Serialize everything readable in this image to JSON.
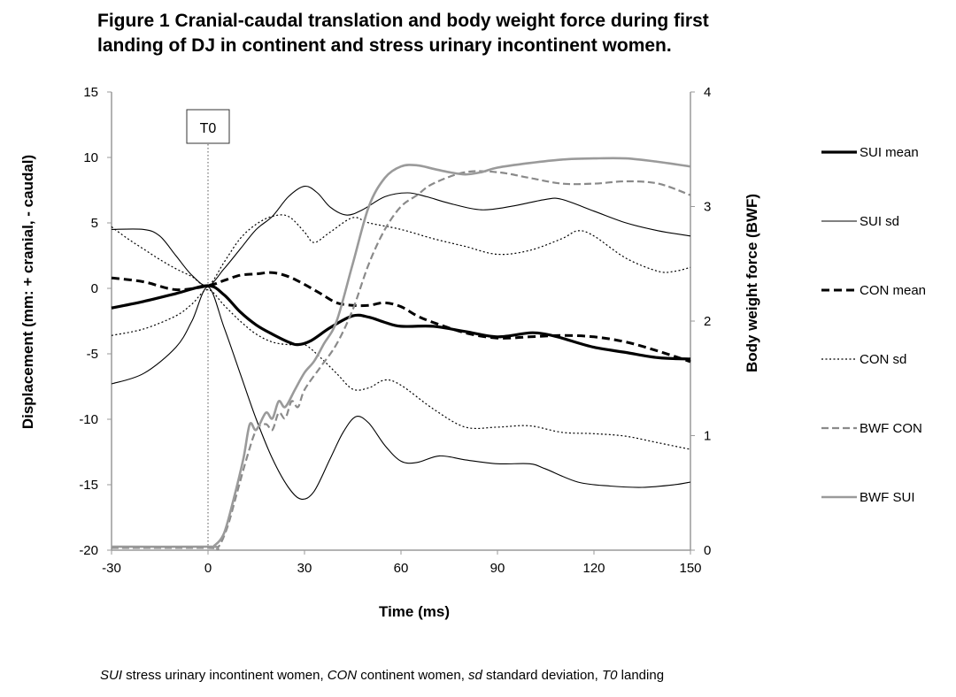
{
  "figure": {
    "title_line1": "Figure 1 Cranial-caudal translation and body weight force during first",
    "title_line2": "landing of DJ in continent and stress urinary incontinent women.",
    "caption": {
      "sui_abbr": "SUI",
      "sui_text": " stress urinary incontinent women, ",
      "con_abbr": "CON",
      "con_text": " continent women, ",
      "sd_abbr": "sd",
      "sd_text": " standard deviation, ",
      "t0_abbr": "T0",
      "t0_text": " landing"
    }
  },
  "chart_data": {
    "type": "line",
    "title": "",
    "xlabel": "Time (ms)",
    "ylabel": "Displacement (mm: + cranial, - caudal)",
    "y2label": "Body weight force (BWF)",
    "xlim": [
      -30,
      150
    ],
    "ylim": [
      -20,
      15
    ],
    "y2lim": [
      0,
      4
    ],
    "xticks": [
      -30,
      0,
      30,
      60,
      90,
      120,
      150
    ],
    "yticks": [
      15,
      10,
      5,
      0,
      -5,
      -10,
      -15,
      -20
    ],
    "y2ticks": [
      4,
      3,
      2,
      1,
      0
    ],
    "grid": false,
    "legend_position": "right",
    "annotation": {
      "text": "T0",
      "x": 0
    },
    "series": [
      {
        "name": "SUI mean",
        "axis": "left",
        "color": "#000000",
        "style": "solid-thick",
        "points": [
          [
            -30,
            -1.5
          ],
          [
            -20,
            -1.0
          ],
          [
            -10,
            -0.4
          ],
          [
            0,
            0.2
          ],
          [
            5,
            -0.5
          ],
          [
            10,
            -1.8
          ],
          [
            15,
            -2.8
          ],
          [
            20,
            -3.5
          ],
          [
            25,
            -4.1
          ],
          [
            28,
            -4.3
          ],
          [
            32,
            -4.0
          ],
          [
            38,
            -3.0
          ],
          [
            45,
            -2.1
          ],
          [
            50,
            -2.2
          ],
          [
            55,
            -2.6
          ],
          [
            60,
            -2.9
          ],
          [
            70,
            -2.9
          ],
          [
            80,
            -3.3
          ],
          [
            90,
            -3.7
          ],
          [
            100,
            -3.4
          ],
          [
            105,
            -3.5
          ],
          [
            110,
            -3.8
          ],
          [
            120,
            -4.5
          ],
          [
            130,
            -4.9
          ],
          [
            140,
            -5.3
          ],
          [
            150,
            -5.4
          ]
        ]
      },
      {
        "name": "SUI sd",
        "axis": "left",
        "color": "#000000",
        "style": "solid-thin",
        "points": [
          [
            -30,
            4.5
          ],
          [
            -20,
            4.5
          ],
          [
            -15,
            4.0
          ],
          [
            -10,
            2.5
          ],
          [
            -5,
            1.0
          ],
          [
            0,
            0.2
          ],
          [
            5,
            1.5
          ],
          [
            10,
            3.0
          ],
          [
            15,
            4.5
          ],
          [
            20,
            5.5
          ],
          [
            25,
            7.0
          ],
          [
            30,
            7.8
          ],
          [
            34,
            7.3
          ],
          [
            38,
            6.2
          ],
          [
            43,
            5.6
          ],
          [
            48,
            6.0
          ],
          [
            55,
            7.0
          ],
          [
            62,
            7.3
          ],
          [
            68,
            7.0
          ],
          [
            75,
            6.5
          ],
          [
            85,
            6.0
          ],
          [
            95,
            6.3
          ],
          [
            105,
            6.8
          ],
          [
            110,
            6.8
          ],
          [
            120,
            5.9
          ],
          [
            130,
            5.0
          ],
          [
            140,
            4.4
          ],
          [
            150,
            4.0
          ]
        ]
      },
      {
        "name": "SUI sd",
        "axis": "left",
        "color": "#000000",
        "style": "solid-thin",
        "points": [
          [
            -30,
            -7.3
          ],
          [
            -20,
            -6.5
          ],
          [
            -10,
            -4.5
          ],
          [
            -5,
            -2.5
          ],
          [
            0,
            0.1
          ],
          [
            5,
            -3.0
          ],
          [
            10,
            -6.5
          ],
          [
            15,
            -10.0
          ],
          [
            20,
            -13.0
          ],
          [
            25,
            -15.2
          ],
          [
            29,
            -16.1
          ],
          [
            33,
            -15.5
          ],
          [
            38,
            -13.0
          ],
          [
            42,
            -11.0
          ],
          [
            46,
            -9.8
          ],
          [
            50,
            -10.3
          ],
          [
            55,
            -12.0
          ],
          [
            60,
            -13.2
          ],
          [
            65,
            -13.3
          ],
          [
            72,
            -12.8
          ],
          [
            80,
            -13.1
          ],
          [
            90,
            -13.4
          ],
          [
            100,
            -13.4
          ],
          [
            105,
            -13.8
          ],
          [
            115,
            -14.8
          ],
          [
            125,
            -15.1
          ],
          [
            135,
            -15.2
          ],
          [
            145,
            -15.0
          ],
          [
            150,
            -14.8
          ]
        ]
      },
      {
        "name": "CON mean",
        "axis": "left",
        "color": "#000000",
        "style": "dashed-thick",
        "points": [
          [
            -30,
            0.8
          ],
          [
            -20,
            0.5
          ],
          [
            -10,
            -0.1
          ],
          [
            0,
            0.2
          ],
          [
            5,
            0.6
          ],
          [
            10,
            1.0
          ],
          [
            15,
            1.1
          ],
          [
            20,
            1.2
          ],
          [
            25,
            0.9
          ],
          [
            30,
            0.3
          ],
          [
            35,
            -0.4
          ],
          [
            40,
            -1.1
          ],
          [
            45,
            -1.3
          ],
          [
            50,
            -1.3
          ],
          [
            55,
            -1.1
          ],
          [
            60,
            -1.4
          ],
          [
            65,
            -2.1
          ],
          [
            70,
            -2.6
          ],
          [
            80,
            -3.4
          ],
          [
            90,
            -3.8
          ],
          [
            100,
            -3.7
          ],
          [
            110,
            -3.6
          ],
          [
            120,
            -3.7
          ],
          [
            130,
            -4.1
          ],
          [
            140,
            -4.8
          ],
          [
            150,
            -5.6
          ]
        ]
      },
      {
        "name": "CON sd",
        "axis": "left",
        "color": "#000000",
        "style": "dotted",
        "points": [
          [
            -30,
            4.7
          ],
          [
            -25,
            3.8
          ],
          [
            -20,
            3.0
          ],
          [
            -15,
            2.2
          ],
          [
            -10,
            1.5
          ],
          [
            -5,
            0.9
          ],
          [
            0,
            0.2
          ],
          [
            5,
            2.0
          ],
          [
            10,
            3.8
          ],
          [
            15,
            4.9
          ],
          [
            20,
            5.5
          ],
          [
            25,
            5.5
          ],
          [
            30,
            4.3
          ],
          [
            33,
            3.5
          ],
          [
            38,
            4.3
          ],
          [
            45,
            5.4
          ],
          [
            50,
            5.0
          ],
          [
            60,
            4.5
          ],
          [
            70,
            3.8
          ],
          [
            80,
            3.2
          ],
          [
            90,
            2.6
          ],
          [
            100,
            2.9
          ],
          [
            110,
            3.8
          ],
          [
            115,
            4.4
          ],
          [
            120,
            4.0
          ],
          [
            130,
            2.3
          ],
          [
            140,
            1.3
          ],
          [
            145,
            1.3
          ],
          [
            150,
            1.6
          ]
        ]
      },
      {
        "name": "CON sd",
        "axis": "left",
        "color": "#000000",
        "style": "dotted",
        "points": [
          [
            -30,
            -3.6
          ],
          [
            -20,
            -3.1
          ],
          [
            -10,
            -2.1
          ],
          [
            -5,
            -1.2
          ],
          [
            0,
            -0.1
          ],
          [
            5,
            -1.3
          ],
          [
            10,
            -2.5
          ],
          [
            15,
            -3.5
          ],
          [
            20,
            -4.1
          ],
          [
            25,
            -4.3
          ],
          [
            30,
            -4.3
          ],
          [
            35,
            -5.3
          ],
          [
            40,
            -6.5
          ],
          [
            45,
            -7.7
          ],
          [
            50,
            -7.6
          ],
          [
            55,
            -7.0
          ],
          [
            60,
            -7.4
          ],
          [
            70,
            -9.2
          ],
          [
            80,
            -10.6
          ],
          [
            90,
            -10.6
          ],
          [
            100,
            -10.5
          ],
          [
            110,
            -11.0
          ],
          [
            120,
            -11.1
          ],
          [
            130,
            -11.3
          ],
          [
            140,
            -11.8
          ],
          [
            150,
            -12.3
          ]
        ]
      },
      {
        "name": "BWF CON",
        "axis": "right",
        "color": "#8a8a8a",
        "style": "dashed-medium",
        "points": [
          [
            -30,
            0.02
          ],
          [
            0,
            0.02
          ],
          [
            3,
            0.02
          ],
          [
            6,
            0.2
          ],
          [
            9,
            0.5
          ],
          [
            12,
            0.8
          ],
          [
            15,
            1.05
          ],
          [
            18,
            1.1
          ],
          [
            20,
            1.05
          ],
          [
            22,
            1.2
          ],
          [
            24,
            1.15
          ],
          [
            26,
            1.3
          ],
          [
            28,
            1.25
          ],
          [
            30,
            1.4
          ],
          [
            35,
            1.6
          ],
          [
            40,
            1.8
          ],
          [
            45,
            2.1
          ],
          [
            50,
            2.5
          ],
          [
            55,
            2.8
          ],
          [
            60,
            3.0
          ],
          [
            65,
            3.1
          ],
          [
            70,
            3.2
          ],
          [
            80,
            3.3
          ],
          [
            90,
            3.3
          ],
          [
            100,
            3.25
          ],
          [
            110,
            3.2
          ],
          [
            120,
            3.2
          ],
          [
            130,
            3.22
          ],
          [
            140,
            3.2
          ],
          [
            150,
            3.1
          ]
        ]
      },
      {
        "name": "BWF SUI",
        "axis": "right",
        "color": "#9a9a9a",
        "style": "solid-medium",
        "points": [
          [
            -30,
            0.03
          ],
          [
            0,
            0.03
          ],
          [
            2,
            0.04
          ],
          [
            5,
            0.15
          ],
          [
            8,
            0.45
          ],
          [
            11,
            0.8
          ],
          [
            13,
            1.1
          ],
          [
            15,
            1.05
          ],
          [
            18,
            1.2
          ],
          [
            20,
            1.15
          ],
          [
            22,
            1.3
          ],
          [
            24,
            1.25
          ],
          [
            27,
            1.4
          ],
          [
            30,
            1.55
          ],
          [
            33,
            1.65
          ],
          [
            36,
            1.8
          ],
          [
            40,
            2.0
          ],
          [
            45,
            2.5
          ],
          [
            50,
            3.0
          ],
          [
            55,
            3.25
          ],
          [
            60,
            3.35
          ],
          [
            65,
            3.36
          ],
          [
            70,
            3.33
          ],
          [
            75,
            3.3
          ],
          [
            80,
            3.28
          ],
          [
            85,
            3.3
          ],
          [
            90,
            3.34
          ],
          [
            100,
            3.38
          ],
          [
            110,
            3.41
          ],
          [
            120,
            3.42
          ],
          [
            130,
            3.42
          ],
          [
            140,
            3.39
          ],
          [
            150,
            3.35
          ]
        ]
      }
    ]
  }
}
